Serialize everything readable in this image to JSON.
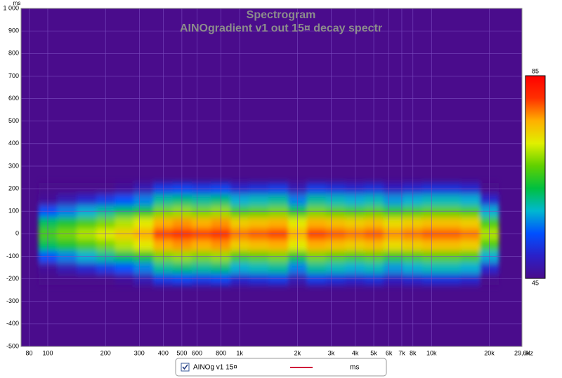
{
  "chart_data": {
    "type": "heatmap",
    "title": "Spectrogram",
    "subtitle": "AINOgradient v1 out 15¤ decay spectr",
    "ylabel": "ms",
    "xlabel": "Hz",
    "xscale": "log",
    "xlim": [
      72.6,
      29600
    ],
    "xticks": [
      80,
      100,
      200,
      300,
      400,
      500,
      600,
      800,
      {
        "value": 1000,
        "label": "1k"
      },
      {
        "value": 2000,
        "label": "2k"
      },
      {
        "value": 3000,
        "label": "3k"
      },
      {
        "value": 4000,
        "label": "4k"
      },
      {
        "value": 5000,
        "label": "5k"
      },
      {
        "value": 6000,
        "label": "6k"
      },
      {
        "value": 7000,
        "label": "7k"
      },
      {
        "value": 8000,
        "label": "8k"
      },
      {
        "value": 10000,
        "label": "10k"
      },
      {
        "value": 20000,
        "label": "20k"
      },
      {
        "value": 29600,
        "label": "29,6k"
      }
    ],
    "ylim": [
      -500,
      1000
    ],
    "yticks": [
      -500,
      -400,
      -300,
      -200,
      -100,
      0,
      100,
      200,
      300,
      400,
      500,
      600,
      700,
      800,
      900,
      {
        "value": 1000,
        "label": "1 000"
      }
    ],
    "grid": true,
    "background": "#4a0c8c",
    "x": [
      100,
      125,
      160,
      200,
      250,
      315,
      400,
      500,
      630,
      800,
      1000,
      1250,
      1600,
      2000,
      2500,
      3150,
      4000,
      5000,
      6300,
      8000,
      10000,
      12500,
      16000,
      20000
    ],
    "y": [
      -200,
      -150,
      -100,
      -50,
      0,
      50,
      100,
      150,
      200
    ],
    "z": [
      [
        38,
        40,
        42,
        44,
        46,
        48,
        52,
        53,
        52,
        53,
        50,
        51,
        52,
        48,
        52,
        51,
        50,
        51,
        49,
        50,
        51,
        51,
        50,
        42
      ],
      [
        46,
        48,
        50,
        52,
        54,
        56,
        60,
        61,
        60,
        61,
        58,
        59,
        60,
        56,
        60,
        59,
        58,
        59,
        57,
        58,
        59,
        59,
        58,
        50
      ],
      [
        54,
        56,
        58,
        60,
        62,
        64,
        68,
        69,
        68,
        69,
        66,
        67,
        68,
        64,
        68,
        67,
        66,
        67,
        65,
        66,
        67,
        67,
        66,
        58
      ],
      [
        62,
        64,
        66,
        68,
        70,
        72,
        76,
        77,
        76,
        77,
        74,
        75,
        76,
        72,
        76,
        75,
        74,
        75,
        73,
        74,
        75,
        75,
        74,
        66
      ],
      [
        66,
        68,
        70,
        72,
        74,
        76,
        80,
        81,
        80,
        81,
        78,
        79,
        80,
        76,
        80,
        79,
        78,
        79,
        77,
        78,
        79,
        79,
        78,
        70
      ],
      [
        62,
        64,
        66,
        68,
        70,
        72,
        76,
        77,
        76,
        77,
        74,
        75,
        76,
        72,
        76,
        75,
        74,
        75,
        73,
        74,
        75,
        75,
        74,
        66
      ],
      [
        54,
        56,
        58,
        60,
        62,
        64,
        68,
        69,
        68,
        69,
        66,
        67,
        68,
        64,
        68,
        67,
        66,
        67,
        65,
        66,
        67,
        67,
        66,
        58
      ],
      [
        46,
        48,
        50,
        52,
        54,
        56,
        60,
        61,
        60,
        61,
        58,
        59,
        60,
        56,
        60,
        59,
        58,
        59,
        57,
        58,
        59,
        59,
        58,
        50
      ],
      [
        38,
        40,
        42,
        44,
        46,
        48,
        52,
        53,
        52,
        53,
        50,
        51,
        52,
        48,
        52,
        51,
        50,
        51,
        49,
        50,
        51,
        51,
        50,
        42
      ]
    ],
    "zlim": [
      45,
      85
    ],
    "colorbar_ticks": [
      45,
      85
    ],
    "colormap": [
      "#4a0c8c",
      "#2a20c8",
      "#0050ff",
      "#00b8d0",
      "#00c040",
      "#60d000",
      "#e0f000",
      "#ffb000",
      "#ff3000",
      "#ff0000"
    ],
    "legend": {
      "name": "AINOg v1 15¤",
      "color": "#d0103a",
      "unit": "ms"
    }
  }
}
